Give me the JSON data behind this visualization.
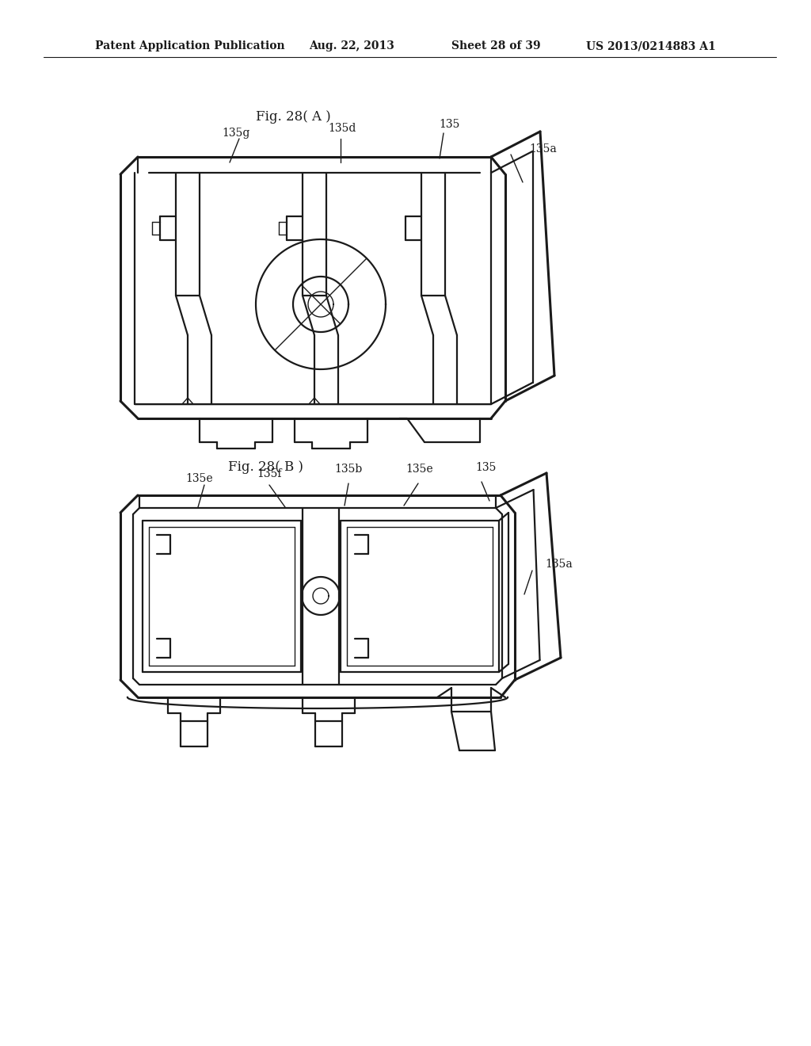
{
  "bg_color": "#ffffff",
  "line_color": "#1a1a1a",
  "header_text": "Patent Application Publication",
  "header_date": "Aug. 22, 2013",
  "header_sheet": "Sheet 28 of 39",
  "header_patent": "US 2013/0214883 A1",
  "fig_a_title": "Fig. 28( A )",
  "fig_b_title": "Fig. 28( B )"
}
